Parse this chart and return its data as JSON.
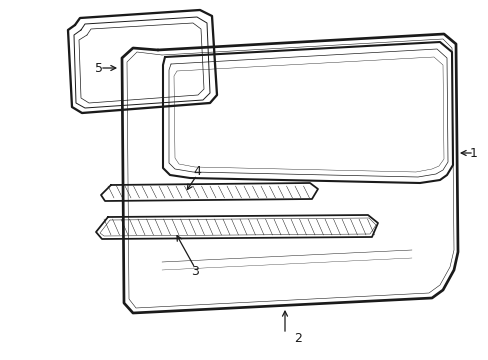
{
  "background_color": "#ffffff",
  "line_color": "#1a1a1a",
  "lw_outer": 1.5,
  "lw_inner": 0.7,
  "lw_thin": 0.5,
  "figsize": [
    4.89,
    3.6
  ],
  "dpi": 100,
  "xlim": [
    0,
    489
  ],
  "ylim": [
    0,
    360
  ]
}
